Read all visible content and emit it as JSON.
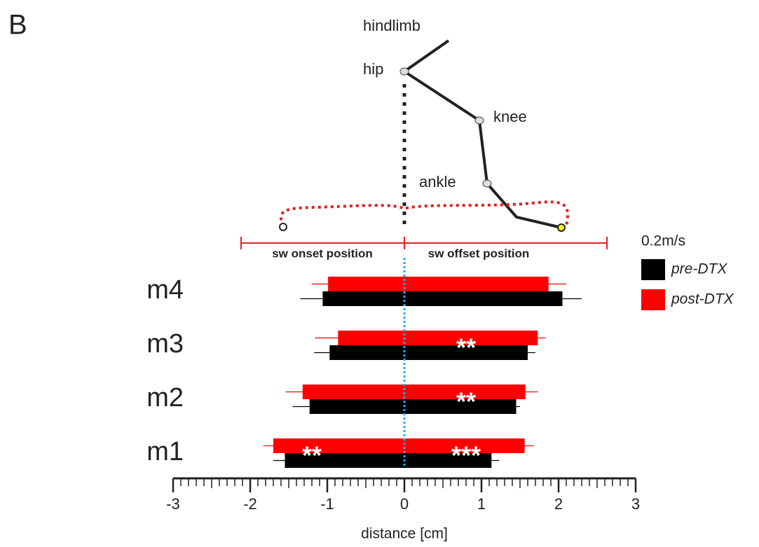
{
  "panel_label": "B",
  "diagram": {
    "title": "hindlimb",
    "joints": [
      "hip",
      "knee",
      "ankle"
    ],
    "onset_label": "sw onset position",
    "offset_label": "sw offset position"
  },
  "chart_data": {
    "type": "diverging-bar",
    "xlabel": "distance [cm]",
    "categories": [
      "m4",
      "m3",
      "m2",
      "m1"
    ],
    "legend_title": "0.2m/s",
    "series": [
      {
        "name": "post-DTX",
        "color": "#ff0000",
        "onset": [
          -0.99,
          -0.86,
          -1.32,
          -1.7
        ],
        "onset_err": [
          0.21,
          0.3,
          0.22,
          0.13
        ],
        "offset": [
          1.87,
          1.73,
          1.57,
          1.56
        ],
        "offset_err": [
          0.23,
          0.1,
          0.16,
          0.12
        ]
      },
      {
        "name": "pre-DTX",
        "color": "#000000",
        "onset": [
          -1.06,
          -0.97,
          -1.23,
          -1.55
        ],
        "onset_err": [
          0.29,
          0.2,
          0.22,
          0.15
        ],
        "offset": [
          2.05,
          1.6,
          1.45,
          1.13
        ],
        "offset_err": [
          0.25,
          0.1,
          0.05,
          0.1
        ]
      }
    ],
    "significance": {
      "onset": [
        null,
        null,
        null,
        "**"
      ],
      "offset": [
        null,
        "**",
        "**",
        "***"
      ]
    },
    "xlim": [
      -3,
      3
    ],
    "xticks": [
      -3,
      -2,
      -1,
      0,
      1,
      2,
      3
    ]
  }
}
